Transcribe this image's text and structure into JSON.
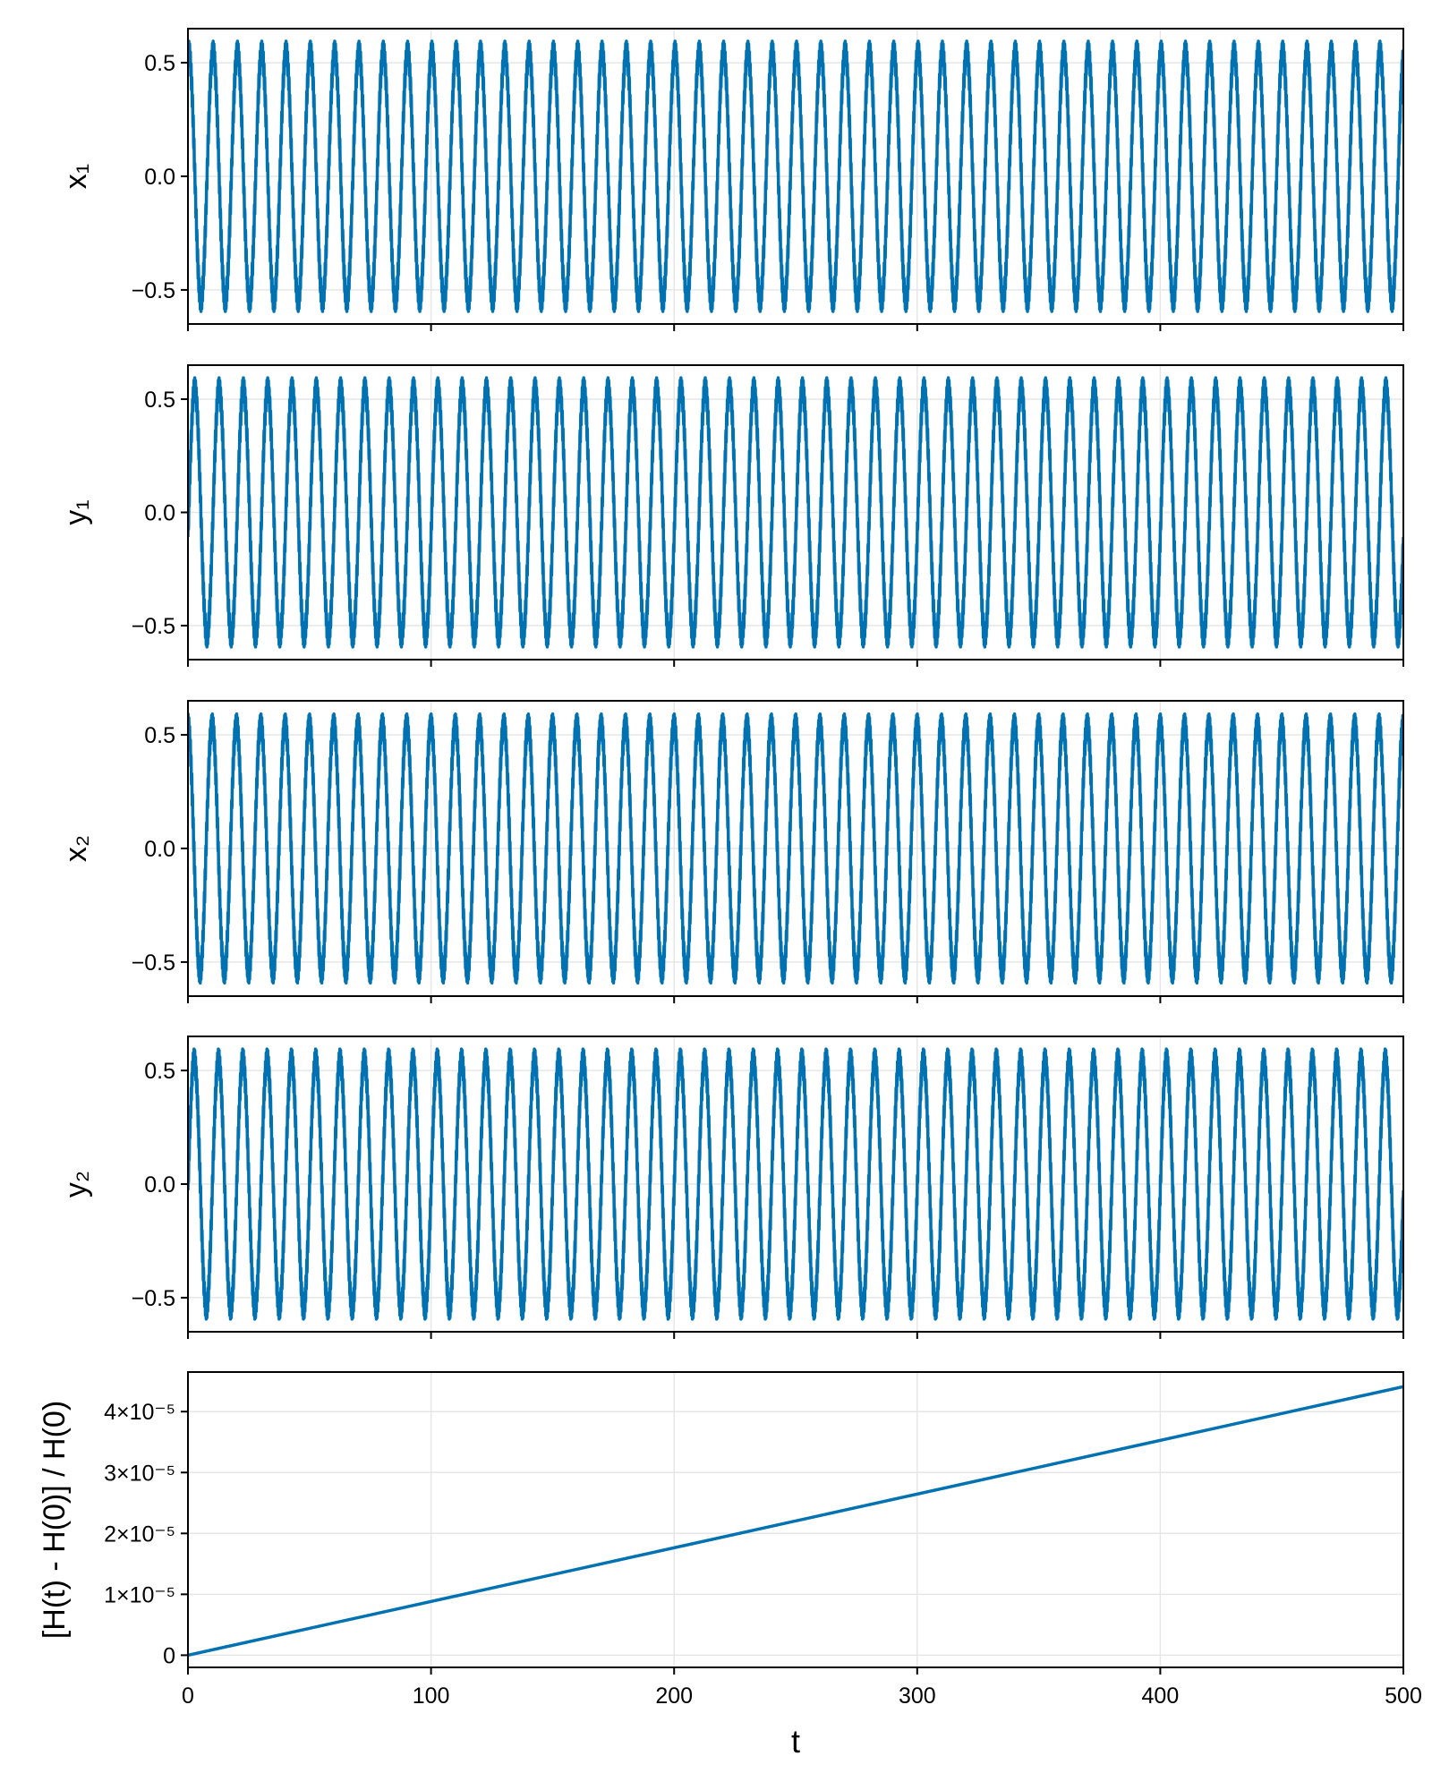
{
  "chart_data": [
    {
      "type": "line",
      "ylabel": "x₁",
      "xlim": [
        0,
        500
      ],
      "ylim": [
        -0.65,
        0.65
      ],
      "yticks": [
        "−0.5",
        "0.0",
        "0.5"
      ],
      "yticks_values": [
        -0.5,
        0.0,
        0.5
      ],
      "grid": true,
      "series": [
        {
          "amplitude": 0.55,
          "ripple_amplitude": 0.045,
          "phase": 1.35,
          "cycles": 50,
          "ripple_cycles": 1650,
          "color": "#0072b2"
        }
      ]
    },
    {
      "type": "line",
      "ylabel": "y₁",
      "xlim": [
        0,
        500
      ],
      "ylim": [
        -0.65,
        0.65
      ],
      "yticks": [
        "−0.5",
        "0.0",
        "0.5"
      ],
      "yticks_values": [
        -0.5,
        0.0,
        0.5
      ],
      "grid": true,
      "series": [
        {
          "amplitude": 0.55,
          "ripple_amplitude": 0.045,
          "phase": -0.2,
          "cycles": 50,
          "ripple_cycles": 1650,
          "color": "#0072b2"
        }
      ]
    },
    {
      "type": "line",
      "ylabel": "x₂",
      "xlim": [
        0,
        500
      ],
      "ylim": [
        -0.65,
        0.65
      ],
      "yticks": [
        "−0.5",
        "0.0",
        "0.5"
      ],
      "yticks_values": [
        -0.5,
        0.0,
        0.5
      ],
      "grid": true,
      "series": [
        {
          "amplitude": 0.55,
          "ripple_amplitude": 0.045,
          "phase": 1.6,
          "cycles": 50,
          "ripple_cycles": 1650,
          "color": "#0072b2"
        }
      ]
    },
    {
      "type": "line",
      "ylabel": "y₂",
      "xlim": [
        0,
        500
      ],
      "ylim": [
        -0.65,
        0.65
      ],
      "yticks": [
        "−0.5",
        "0.0",
        "0.5"
      ],
      "yticks_values": [
        -0.5,
        0.0,
        0.5
      ],
      "grid": true,
      "series": [
        {
          "amplitude": 0.55,
          "ripple_amplitude": 0.045,
          "phase": -0.05,
          "cycles": 50,
          "ripple_cycles": 1650,
          "color": "#0072b2"
        }
      ]
    },
    {
      "type": "line",
      "ylabel": "[H(t) - H(0)] / H(0)",
      "xlabel": "t",
      "xlim": [
        0,
        500
      ],
      "ylim": [
        -2e-06,
        4.65e-05
      ],
      "xticks": [
        "0",
        "100",
        "200",
        "300",
        "400",
        "500"
      ],
      "xticks_values": [
        0,
        100,
        200,
        300,
        400,
        500
      ],
      "yticks": [
        "0",
        "1×10⁻⁵",
        "2×10⁻⁵",
        "3×10⁻⁵",
        "4×10⁻⁵"
      ],
      "yticks_values": [
        0,
        1e-05,
        2e-05,
        3e-05,
        4e-05
      ],
      "grid": true,
      "series": [
        {
          "x": [
            0,
            500
          ],
          "y": [
            0,
            4.41e-05
          ],
          "color": "#0072b2"
        }
      ]
    }
  ]
}
